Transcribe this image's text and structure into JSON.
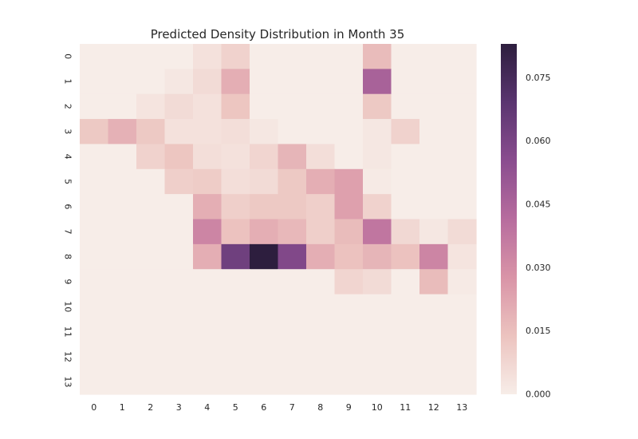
{
  "chart_data": {
    "type": "heatmap",
    "title": "Predicted Density Distribution in Month 35",
    "xlabel": "",
    "ylabel": "",
    "x_categories": [
      "0",
      "1",
      "2",
      "3",
      "4",
      "5",
      "6",
      "7",
      "8",
      "9",
      "10",
      "11",
      "12",
      "13"
    ],
    "y_categories": [
      "0",
      "1",
      "2",
      "3",
      "4",
      "5",
      "6",
      "7",
      "8",
      "9",
      "10",
      "11",
      "12",
      "13"
    ],
    "values": [
      [
        0.0,
        0.0,
        0.0,
        0.0,
        0.004,
        0.009,
        0.0,
        0.0,
        0.0,
        0.0,
        0.016,
        0.0,
        0.0,
        0.0
      ],
      [
        0.0,
        0.0,
        0.0,
        0.002,
        0.006,
        0.02,
        0.0,
        0.0,
        0.0,
        0.0,
        0.046,
        0.0,
        0.0,
        0.0
      ],
      [
        0.0,
        0.0,
        0.003,
        0.006,
        0.004,
        0.013,
        0.0,
        0.0,
        0.0,
        0.0,
        0.012,
        0.0,
        0.0,
        0.0
      ],
      [
        0.012,
        0.019,
        0.012,
        0.004,
        0.004,
        0.005,
        0.002,
        0.0,
        0.0,
        0.0,
        0.002,
        0.009,
        0.0,
        0.0
      ],
      [
        0.0,
        0.0,
        0.009,
        0.013,
        0.005,
        0.004,
        0.008,
        0.018,
        0.005,
        0.0,
        0.002,
        0.0,
        0.0,
        0.0
      ],
      [
        0.0,
        0.0,
        0.0,
        0.01,
        0.011,
        0.005,
        0.006,
        0.012,
        0.02,
        0.024,
        0.001,
        0.0,
        0.0,
        0.0
      ],
      [
        0.0,
        0.0,
        0.0,
        0.0,
        0.02,
        0.01,
        0.012,
        0.012,
        0.01,
        0.024,
        0.009,
        0.0,
        0.0,
        0.0
      ],
      [
        0.0,
        0.0,
        0.0,
        0.0,
        0.033,
        0.014,
        0.02,
        0.017,
        0.01,
        0.016,
        0.038,
        0.007,
        0.002,
        0.006
      ],
      [
        0.0,
        0.0,
        0.0,
        0.0,
        0.02,
        0.063,
        0.083,
        0.058,
        0.02,
        0.014,
        0.018,
        0.014,
        0.033,
        0.003
      ],
      [
        0.0,
        0.0,
        0.0,
        0.0,
        0.0,
        0.0,
        0.0,
        0.0,
        0.0,
        0.008,
        0.006,
        0.0,
        0.016,
        0.001
      ],
      [
        0.0,
        0.0,
        0.0,
        0.0,
        0.0,
        0.0,
        0.0,
        0.0,
        0.0,
        0.0,
        0.0,
        0.0,
        0.0,
        0.0
      ],
      [
        0.0,
        0.0,
        0.0,
        0.0,
        0.0,
        0.0,
        0.0,
        0.0,
        0.0,
        0.0,
        0.0,
        0.0,
        0.0,
        0.0
      ],
      [
        0.0,
        0.0,
        0.0,
        0.0,
        0.0,
        0.0,
        0.0,
        0.0,
        0.0,
        0.0,
        0.0,
        0.0,
        0.0,
        0.0
      ],
      [
        0.0,
        0.0,
        0.0,
        0.0,
        0.0,
        0.0,
        0.0,
        0.0,
        0.0,
        0.0,
        0.0,
        0.0,
        0.0,
        0.0
      ]
    ],
    "vmin": 0.0,
    "vmax": 0.083,
    "colorbar": {
      "ticks": [
        0.0,
        0.015,
        0.03,
        0.045,
        0.06,
        0.075
      ],
      "tick_labels": [
        "0.000",
        "0.015",
        "0.030",
        "0.045",
        "0.060",
        "0.075"
      ],
      "placement": "right"
    },
    "colormap": [
      "#f7ede8",
      "#ecc3bf",
      "#d994a7",
      "#b76c9e",
      "#8a4d8f",
      "#5a3570",
      "#2d1e3e"
    ],
    "grid": false
  }
}
